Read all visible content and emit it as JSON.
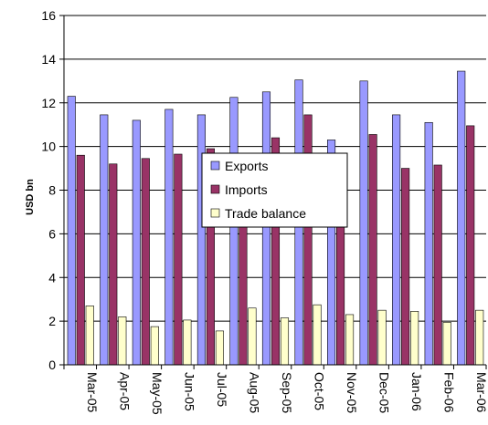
{
  "chart_data": {
    "type": "bar",
    "title": "",
    "xlabel": "",
    "ylabel": "USD bn",
    "ylim": [
      0,
      16
    ],
    "yticks": [
      0,
      2,
      4,
      6,
      8,
      10,
      12,
      14,
      16
    ],
    "grid": "horizontal",
    "legend_position": "center",
    "categories": [
      "Mar-05",
      "Apr-05",
      "May-05",
      "Jun-05",
      "Jul-05",
      "Aug-05",
      "Sep-05",
      "Oct-05",
      "Nov-05",
      "Dec-05",
      "Jan-06",
      "Feb-06",
      "Mar-06"
    ],
    "series": [
      {
        "name": "Exports",
        "color": "#9999ff",
        "values": [
          12.3,
          11.45,
          11.2,
          11.7,
          11.45,
          12.25,
          12.5,
          13.05,
          10.3,
          13.0,
          11.45,
          11.1,
          13.45
        ]
      },
      {
        "name": "Imports",
        "color": "#993366",
        "values": [
          9.6,
          9.2,
          9.45,
          9.65,
          9.9,
          9.65,
          10.4,
          11.45,
          9.0,
          10.55,
          9.0,
          9.15,
          10.95
        ]
      },
      {
        "name": "Trade balance",
        "color": "#ffffcc",
        "values": [
          2.7,
          2.2,
          1.75,
          2.05,
          1.55,
          2.6,
          2.15,
          2.75,
          2.3,
          2.5,
          2.45,
          1.95,
          2.5
        ]
      }
    ]
  }
}
